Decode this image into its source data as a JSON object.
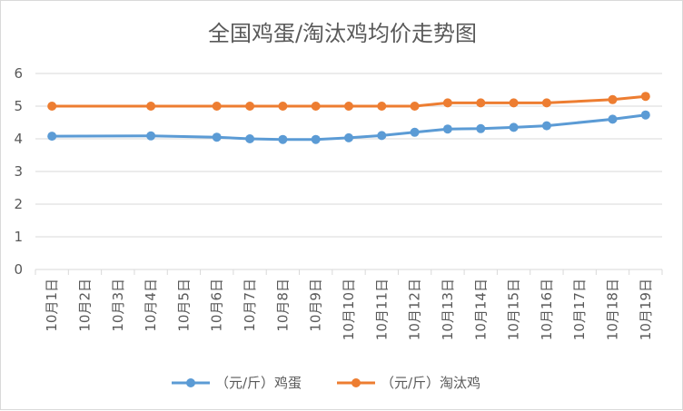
{
  "chart_data": {
    "type": "line",
    "title": "全国鸡蛋/淘汰鸡均价走势图",
    "xlabel": "",
    "ylabel": "",
    "ylim": [
      0,
      6
    ],
    "yticks": [
      0,
      1,
      2,
      3,
      4,
      5,
      6
    ],
    "grid": "horizontal",
    "legend_position": "bottom",
    "categories": [
      "10月1日",
      "10月2日",
      "10月3日",
      "10月4日",
      "10月5日",
      "10月6日",
      "10月7日",
      "10月8日",
      "10月9日",
      "10月10日",
      "10月11日",
      "10月12日",
      "10月13日",
      "10月14日",
      "10月15日",
      "10月16日",
      "10月17日",
      "10月18日",
      "10月19日"
    ],
    "series": [
      {
        "name": "（元/斤）鸡蛋",
        "color": "#5b9bd5",
        "values": [
          4.08,
          null,
          null,
          4.09,
          null,
          4.05,
          4.0,
          3.98,
          3.98,
          4.03,
          4.1,
          4.2,
          4.3,
          4.31,
          4.35,
          4.4,
          null,
          4.6,
          4.73
        ]
      },
      {
        "name": "（元/斤）淘汰鸡",
        "color": "#ed7d31",
        "values": [
          5.0,
          null,
          null,
          5.0,
          null,
          5.0,
          5.0,
          5.0,
          5.0,
          5.0,
          5.0,
          5.0,
          5.1,
          5.1,
          5.1,
          5.1,
          null,
          5.2,
          5.3
        ]
      }
    ]
  }
}
